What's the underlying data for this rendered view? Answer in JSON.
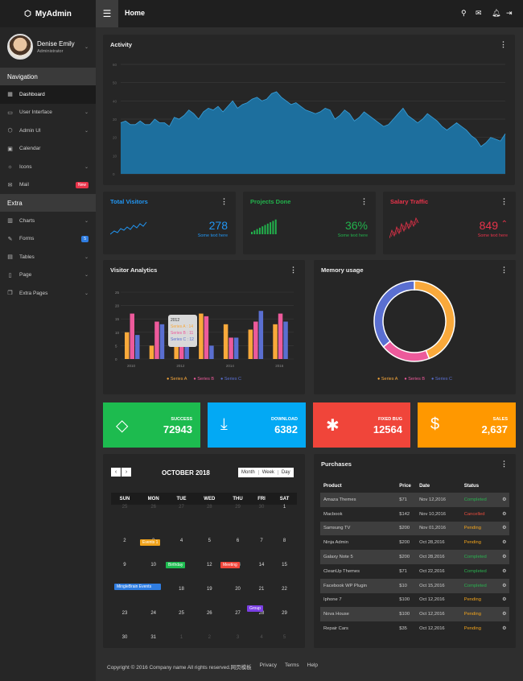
{
  "header": {
    "brand": "MyAdmin",
    "title": "Home",
    "menu_icon": "hamburger-icon",
    "icons": [
      "search-icon",
      "mail-icon",
      "bell-icon",
      "logout-icon"
    ]
  },
  "profile": {
    "name": "Denise Emily",
    "role": "Administrator"
  },
  "sidebar": {
    "nav_heading": "Navigation",
    "nav_items": [
      {
        "label": "Dashboard",
        "icon": "dashboard-icon",
        "active": true
      },
      {
        "label": "User Interface",
        "icon": "monitor-icon",
        "chevron": true
      },
      {
        "label": "Admin UI",
        "icon": "cube-icon",
        "chevron": true
      },
      {
        "label": "Calendar",
        "icon": "calendar-icon"
      },
      {
        "label": "Icons",
        "icon": "fire-icon",
        "chevron": true
      },
      {
        "label": "Mail",
        "icon": "mail-icon",
        "badge": "New",
        "badge_color": "#e8334a"
      }
    ],
    "extra_heading": "Extra",
    "extra_items": [
      {
        "label": "Charts",
        "icon": "chart-icon",
        "chevron": true
      },
      {
        "label": "Forms",
        "icon": "edit-icon",
        "badge": "5",
        "badge_color": "#2f7de1"
      },
      {
        "label": "Tables",
        "icon": "table-icon",
        "chevron": true
      },
      {
        "label": "Page",
        "icon": "page-icon",
        "chevron": true
      },
      {
        "label": "Extra Pages",
        "icon": "pages-icon",
        "chevron": true
      }
    ]
  },
  "activity": {
    "title": "Activity",
    "yticks": [
      "60",
      "50",
      "40",
      "30",
      "20",
      "10",
      "0"
    ]
  },
  "stats": [
    {
      "title": "Total Visitors",
      "value": "278",
      "sub": "Some text here",
      "color": "#2196f3"
    },
    {
      "title": "Projects Done",
      "value": "36%",
      "sub": "Some text here",
      "color": "#22b24c"
    },
    {
      "title": "Salary Traffic",
      "value": "849",
      "sub": "Some text here",
      "color": "#e8334a"
    }
  ],
  "analytics": {
    "title": "Visitor Analytics",
    "tooltip": [
      "2012",
      "Series A : 14",
      "Series B : 11",
      "Series C : 12"
    ]
  },
  "memory": {
    "title": "Memory usage"
  },
  "tiles": [
    {
      "label": "SUCCESS",
      "value": "72943",
      "color": "#1dbb4f",
      "icon": "diamond-icon"
    },
    {
      "label": "DOWNLOAD",
      "value": "6382",
      "color": "#03a9f4",
      "icon": "download-icon"
    },
    {
      "label": "FIXED BUG",
      "value": "12564",
      "color": "#f0453a",
      "icon": "bug-icon"
    },
    {
      "label": "SALES",
      "value": "2,637",
      "color": "#ff9800",
      "icon": "dollar-icon"
    }
  ],
  "calendar": {
    "month": "OCTOBER 2018",
    "views": [
      "Month",
      "Week",
      "Day"
    ],
    "days": [
      "SUN",
      "MON",
      "TUE",
      "WED",
      "THU",
      "FRI",
      "SAT"
    ],
    "rows": [
      [
        "25",
        "26",
        "27",
        "28",
        "29",
        "30",
        "1"
      ],
      [
        "2",
        "3",
        "4",
        "5",
        "6",
        "7",
        "8"
      ],
      [
        "9",
        "10",
        "11",
        "12",
        "13",
        "14",
        "15"
      ],
      [
        "16",
        "17",
        "18",
        "19",
        "20",
        "21",
        "22"
      ],
      [
        "23",
        "24",
        "25",
        "26",
        "27",
        "28",
        "29"
      ],
      [
        "30",
        "31",
        "1",
        "2",
        "3",
        "4",
        "5"
      ]
    ],
    "events": [
      {
        "label": "Events 1",
        "color": "#f0a31c"
      },
      {
        "label": "Birthday",
        "color": "#1dbb4f"
      },
      {
        "label": "Meeting",
        "color": "#f0453a"
      },
      {
        "label": "MingleBrain Events",
        "color": "#2f7de1"
      },
      {
        "label": "Group",
        "color": "#7b3fe4"
      }
    ]
  },
  "purchases": {
    "title": "Purchases",
    "headers": [
      "Product",
      "Price",
      "Date",
      "Status"
    ],
    "rows": [
      [
        "Amaza Themes",
        "$71",
        "Nov 12,2016",
        "Completed"
      ],
      [
        "Macbook",
        "$142",
        "Nov 10,2016",
        "Cancelled"
      ],
      [
        "Samsung TV",
        "$200",
        "Nov 01,2016",
        "Pending"
      ],
      [
        "Ninja Admin",
        "$200",
        "Oct 28,2016",
        "Pending"
      ],
      [
        "Galaxy Note 5",
        "$200",
        "Oct 28,2016",
        "Completed"
      ],
      [
        "CleanUp Themes",
        "$71",
        "Oct 22,2016",
        "Completed"
      ],
      [
        "Facebook WP Plugin",
        "$10",
        "Oct 15,2016",
        "Completed"
      ],
      [
        "Iphone 7",
        "$100",
        "Oct 12,2016",
        "Pending"
      ],
      [
        "Nova House",
        "$100",
        "Oct 12,2016",
        "Pending"
      ],
      [
        "Repair Cars",
        "$35",
        "Oct 12,2016",
        "Pending"
      ]
    ]
  },
  "footer": {
    "copyright": "Copyright © 2016 Company name All rights reserved.网页模板",
    "links": [
      "Privacy",
      "Terms",
      "Help"
    ]
  },
  "chart_data": [
    {
      "type": "area",
      "title": "Activity",
      "ylim": [
        0,
        60
      ],
      "series": [
        {
          "values": [
            28,
            29,
            27,
            27,
            29,
            27,
            27,
            30,
            28,
            28,
            26,
            31,
            30,
            32,
            35,
            33,
            30,
            34,
            36,
            35,
            37,
            34,
            37,
            40,
            36,
            38,
            39,
            41,
            42,
            40,
            41,
            44,
            45,
            42,
            40,
            38,
            39,
            37,
            35,
            34,
            33,
            34,
            36,
            35,
            30,
            32,
            35,
            33,
            29,
            31,
            34,
            32,
            30,
            28,
            26,
            27,
            30,
            33,
            36,
            32,
            30,
            28,
            30,
            33,
            31,
            29,
            26,
            24,
            26,
            28,
            26,
            24,
            21,
            19,
            15,
            17,
            20,
            19,
            18,
            22
          ]
        }
      ]
    },
    {
      "type": "bar",
      "title": "Visitor Analytics",
      "categories": [
        "2010",
        "2011",
        "2012",
        "2013",
        "2014",
        "2015",
        "2016"
      ],
      "ylim": [
        0,
        25
      ],
      "series": [
        {
          "name": "Series A",
          "values": [
            10,
            5,
            14,
            17,
            13,
            11,
            13
          ]
        },
        {
          "name": "Series B",
          "values": [
            17,
            14,
            11,
            16,
            8,
            14,
            17
          ]
        },
        {
          "name": "Series C",
          "values": [
            9,
            13,
            12,
            5,
            8,
            18,
            14
          ]
        }
      ],
      "colors": [
        "#f9a93b",
        "#ed5a9b",
        "#5a6fd1"
      ]
    },
    {
      "type": "pie",
      "title": "Memory usage",
      "categories": [
        "Series A",
        "Series B",
        "Series C"
      ],
      "values": [
        44,
        20,
        36
      ],
      "colors": [
        "#f9a93b",
        "#ed5a9b",
        "#5a6fd1"
      ]
    }
  ]
}
